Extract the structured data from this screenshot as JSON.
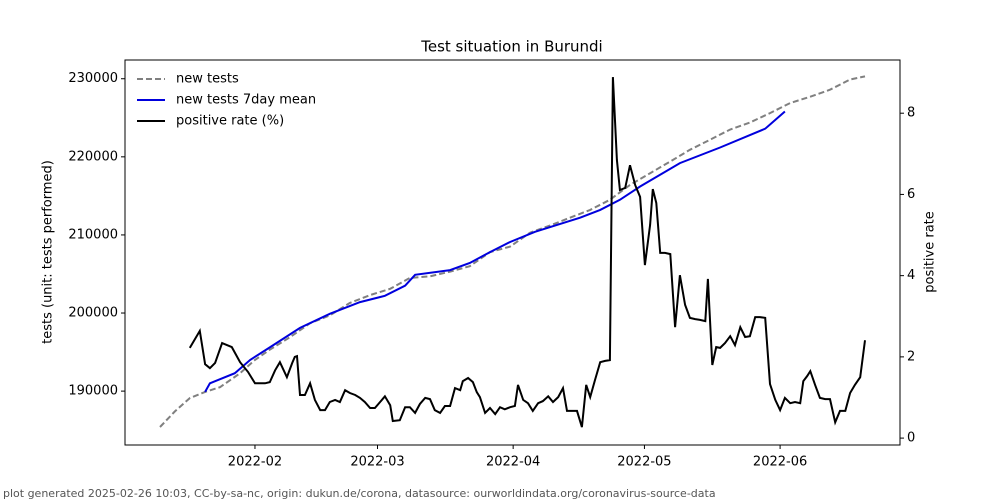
{
  "chart_data": {
    "type": "line",
    "title": "Test situation in Burundi",
    "ylabel": "tests (unit: tests performed)",
    "y2label": "positive rate",
    "footer": "plot generated 2025-02-26 10:03, CC-by-sa-nc, origin: dukun.de/corona, datasource: ourworldindata.org/coronavirus-source-data",
    "xlim": [
      2.3,
      179.4
    ],
    "xticks": [
      {
        "value": 32,
        "label": "2022-02"
      },
      {
        "value": 60,
        "label": "2022-03"
      },
      {
        "value": 91,
        "label": "2022-04"
      },
      {
        "value": 121,
        "label": "2022-05"
      },
      {
        "value": 152,
        "label": "2022-06"
      }
    ],
    "ylim": [
      183100,
      232400
    ],
    "yticks": [
      190000,
      200000,
      210000,
      220000,
      230000
    ],
    "y2lim": [
      -0.17,
      9.31
    ],
    "y2ticks": [
      0,
      2,
      4,
      6,
      8
    ],
    "legend": "upper left",
    "series": [
      {
        "name": "new tests",
        "color": "#808080",
        "linestyle": "dashed",
        "axis": "y",
        "x": [
          10.3,
          13.7,
          17.1,
          20.6,
          24,
          28.6,
          32,
          35.4,
          40,
          44.6,
          49.1,
          53.7,
          58.3,
          62.9,
          67.4,
          72,
          76.6,
          81.1,
          85.7,
          90.3,
          94.9,
          99.4,
          104,
          108.6,
          113.1,
          117.7,
          122.3,
          126.9,
          131.4,
          136,
          140.6,
          145.1,
          149.7,
          154.3,
          158.9,
          163.4,
          168,
          171.4
        ],
        "values": [
          185400,
          187400,
          189100,
          189900,
          190500,
          192300,
          194000,
          195300,
          196900,
          198700,
          199700,
          201300,
          202300,
          203100,
          204500,
          204700,
          205300,
          206000,
          207800,
          208500,
          210300,
          211200,
          212200,
          213200,
          214500,
          216400,
          217900,
          219400,
          220900,
          222200,
          223500,
          224400,
          225600,
          226900,
          227700,
          228600,
          229900,
          230300
        ]
      },
      {
        "name": "new tests 7day mean",
        "color": "#0000dd",
        "linestyle": "solid",
        "axis": "y",
        "x": [
          20.6,
          21.7,
          27.4,
          30.9,
          35.4,
          42.3,
          49.1,
          56,
          61.7,
          66.3,
          68.6,
          76.6,
          81.1,
          85.7,
          90.3,
          96,
          106.3,
          110.9,
          115.4,
          120,
          129.1,
          138.3,
          148.6,
          153.1
        ],
        "values": [
          189900,
          191000,
          192300,
          194000,
          195600,
          198100,
          199900,
          201400,
          202200,
          203500,
          204900,
          205500,
          206400,
          207800,
          209100,
          210400,
          212200,
          213200,
          214500,
          216200,
          219200,
          221200,
          223600,
          225800
        ]
      },
      {
        "name": "positive rate (%)",
        "color": "#000000",
        "linestyle": "solid",
        "axis": "y2",
        "x": [
          17.1,
          19.4,
          20.6,
          21.7,
          22.9,
          24.5,
          26.7,
          28.6,
          30.4,
          32,
          34.3,
          35.4,
          36.6,
          37.7,
          39.3,
          40.5,
          41.1,
          41.6,
          42.3,
          43.4,
          44.6,
          45.7,
          46.9,
          48,
          49.1,
          50.3,
          51.4,
          52.6,
          53.7,
          54.9,
          56,
          57.1,
          58.3,
          59.4,
          60.6,
          61.7,
          62.9,
          63.5,
          65.1,
          66.3,
          67.4,
          68.6,
          69.7,
          70.9,
          72,
          73.1,
          74.3,
          75.4,
          76.6,
          77.7,
          78.9,
          79.5,
          80.7,
          81.8,
          82.7,
          83.4,
          84.6,
          85.7,
          86.9,
          88,
          89.1,
          90.3,
          91.4,
          92.1,
          93.3,
          94.4,
          95.5,
          96.7,
          97.8,
          99,
          100.1,
          101.3,
          102.4,
          103.3,
          104.5,
          105.6,
          106.7,
          107.7,
          108.6,
          109.7,
          110.9,
          112,
          113.1,
          113.8,
          114.7,
          115.4,
          116.6,
          117.7,
          118.9,
          120,
          121.1,
          122.3,
          122.9,
          123.7,
          124.6,
          125.7,
          126.9,
          128,
          129.1,
          130.3,
          131.4,
          132.6,
          133.7,
          134.9,
          135.5,
          136.5,
          137.4,
          138.3,
          139.4,
          140.6,
          141.7,
          142.9,
          144,
          145.1,
          146.3,
          147.4,
          148.6,
          149.7,
          150.9,
          152,
          153.1,
          154.3,
          155.4,
          156.6,
          157.3,
          158.2,
          158.9,
          160,
          161.1,
          162.3,
          163.4,
          164.6,
          165.7,
          166.9,
          168,
          169.1,
          170.3,
          171.4
        ],
        "values": [
          2.22,
          2.64,
          1.82,
          1.72,
          1.85,
          2.34,
          2.24,
          1.87,
          1.63,
          1.35,
          1.35,
          1.38,
          1.67,
          1.87,
          1.5,
          1.85,
          2,
          2.02,
          1.06,
          1.06,
          1.35,
          0.94,
          0.69,
          0.69,
          0.89,
          0.94,
          0.89,
          1.18,
          1.11,
          1.06,
          0.99,
          0.89,
          0.74,
          0.74,
          0.89,
          1.03,
          0.81,
          0.42,
          0.44,
          0.76,
          0.76,
          0.62,
          0.84,
          0.99,
          0.96,
          0.69,
          0.62,
          0.79,
          0.79,
          1.23,
          1.18,
          1.4,
          1.48,
          1.38,
          1.13,
          1.01,
          0.62,
          0.74,
          0.59,
          0.76,
          0.71,
          0.76,
          0.79,
          1.31,
          0.94,
          0.86,
          0.67,
          0.86,
          0.91,
          1.03,
          0.89,
          1.01,
          1.23,
          0.67,
          0.67,
          0.67,
          0.27,
          1.31,
          1.01,
          1.43,
          1.87,
          1.9,
          1.92,
          8.89,
          6.85,
          6.11,
          6.16,
          6.72,
          6.23,
          5.94,
          4.26,
          5.25,
          6.13,
          5.79,
          4.56,
          4.56,
          4.53,
          2.73,
          4.01,
          3.28,
          2.96,
          2.93,
          2.91,
          2.88,
          3.92,
          1.8,
          2.24,
          2.22,
          2.34,
          2.51,
          2.29,
          2.73,
          2.49,
          2.51,
          2.98,
          2.98,
          2.96,
          1.33,
          0.94,
          0.69,
          0.99,
          0.86,
          0.89,
          0.86,
          1.4,
          1.53,
          1.65,
          1.31,
          0.99,
          0.96,
          0.96,
          0.39,
          0.67,
          0.67,
          1.11,
          1.31,
          1.5,
          2.41
        ]
      }
    ]
  }
}
